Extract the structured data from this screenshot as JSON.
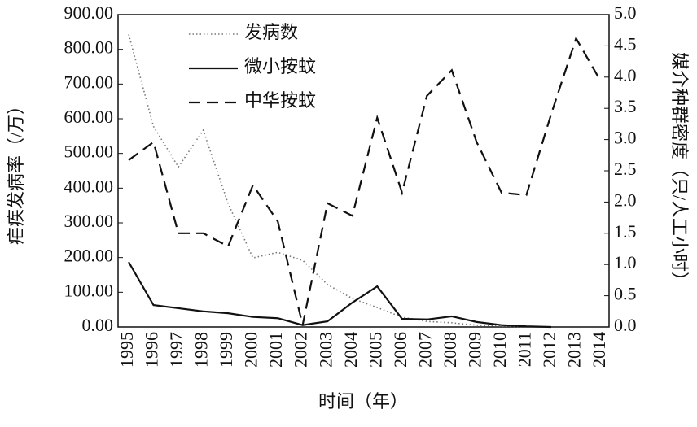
{
  "chart_data": {
    "type": "line",
    "x_label": "时间（年）",
    "y_label": "疟疾发病率（/万）",
    "y2_label": "媒介种群密度（只/人工小时）",
    "categories": [
      "1995",
      "1996",
      "1997",
      "1998",
      "1999",
      "2000",
      "2001",
      "2002",
      "2003",
      "2004",
      "2005",
      "2006",
      "2007",
      "2008",
      "2009",
      "2010",
      "2011",
      "2012",
      "2013",
      "2014"
    ],
    "ylim": [
      0,
      900
    ],
    "yticks": [
      {
        "value": 0,
        "label": "0.00"
      },
      {
        "value": 100,
        "label": "100.00"
      },
      {
        "value": 200,
        "label": "200.00"
      },
      {
        "value": 300,
        "label": "300.00"
      },
      {
        "value": 400,
        "label": "400.00"
      },
      {
        "value": 500,
        "label": "500.00"
      },
      {
        "value": 600,
        "label": "600.00"
      },
      {
        "value": 700,
        "label": "700.00"
      },
      {
        "value": 800,
        "label": "800.00"
      },
      {
        "value": 900,
        "label": "900.00"
      }
    ],
    "y2lim": [
      0,
      5
    ],
    "y2ticks": [
      {
        "value": 0,
        "label": "0.0"
      },
      0.5,
      {
        "value": 1,
        "label": "1.0"
      },
      1.5,
      {
        "value": 2,
        "label": "2.0"
      },
      2.5,
      {
        "value": 3,
        "label": "3.0"
      },
      3.5,
      {
        "value": 4,
        "label": "4.0"
      },
      4.5,
      {
        "value": 5,
        "label": "5.0"
      }
    ],
    "legend": "upper center",
    "series": [
      {
        "name": "发病数",
        "color": "#777777",
        "dash": "dotted",
        "axis": "y",
        "values": [
          843,
          578,
          461,
          567,
          356,
          199,
          215,
          192,
          122,
          82,
          56,
          28,
          16,
          12,
          5,
          2,
          1,
          null,
          null,
          null
        ]
      },
      {
        "name": "微小按蚊",
        "color": "#111111",
        "dash": "solid",
        "axis": "y2",
        "values": [
          1.04,
          0.35,
          0.3,
          0.25,
          0.22,
          0.16,
          0.14,
          0.03,
          0.09,
          0.39,
          0.65,
          0.13,
          0.12,
          0.17,
          0.08,
          0.03,
          0.01,
          0,
          null,
          null
        ]
      },
      {
        "name": "中华按蚊",
        "color": "#111111",
        "dash": "dashed",
        "axis": "y2",
        "values": [
          2.67,
          2.96,
          1.5,
          1.5,
          1.29,
          2.27,
          1.69,
          0.03,
          1.98,
          1.78,
          3.35,
          2.15,
          3.7,
          4.11,
          2.96,
          2.15,
          2.11,
          3.41,
          4.62,
          3.93
        ]
      }
    ]
  }
}
